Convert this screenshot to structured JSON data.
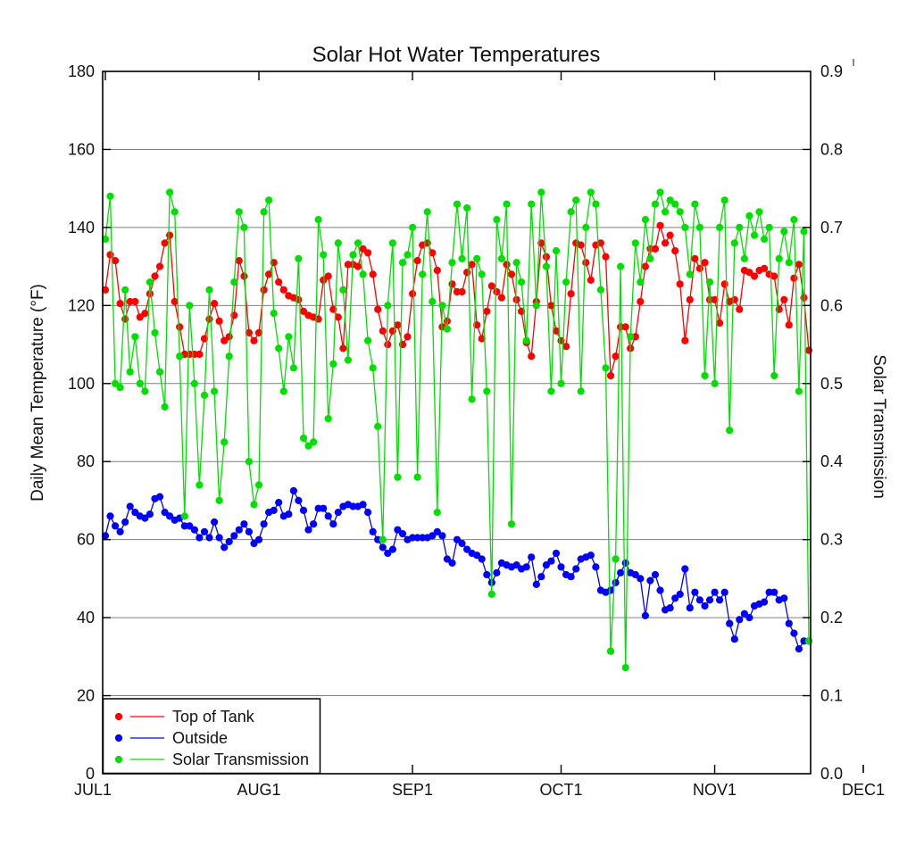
{
  "title": "Solar Hot Water Temperatures",
  "chart_data": {
    "type": "line",
    "title": "Solar Hot Water Temperatures",
    "x_axis": {
      "tick_labels": [
        "JUL1",
        "AUG1",
        "SEP1",
        "OCT1",
        "NOV1",
        "DEC1"
      ],
      "tick_days": [
        0,
        31,
        62,
        92,
        123,
        153
      ],
      "start_day": 0,
      "end_day": 153,
      "data_days": 143
    },
    "left_axis": {
      "label": "Daily Mean Temperature (°F)",
      "min": 0,
      "max": 180,
      "tick_step": 20
    },
    "right_axis": {
      "label": "Solar Transmission",
      "min": 0.0,
      "max": 0.9,
      "tick_step": 0.1
    },
    "grid": true,
    "legend_position": "bottom-left",
    "colors": {
      "top_of_tank": "#ff0000",
      "outside": "#0000ff",
      "solar_transmission": "#00e000",
      "gridline": "#808080",
      "axis": "#000000"
    },
    "series": [
      {
        "name": "Top of Tank",
        "axis": "left",
        "color": "#ff0000",
        "marker": "circle",
        "values": [
          124,
          133,
          131.5,
          120.5,
          116.5,
          121,
          121,
          117,
          118,
          123,
          127.5,
          130,
          136,
          138,
          121,
          114.5,
          107.5,
          107.5,
          107.5,
          107.5,
          111.5,
          116.5,
          120.5,
          116,
          111,
          112,
          117.5,
          131.5,
          127.5,
          113,
          111,
          113,
          124,
          128,
          131,
          126,
          124,
          122.5,
          122,
          121.5,
          118.5,
          117.5,
          117,
          116.5,
          126.5,
          127.5,
          119,
          117,
          109,
          130.5,
          130.5,
          130,
          134.5,
          133.5,
          128,
          119,
          113.5,
          110,
          113.5,
          115,
          110,
          112,
          123,
          131.5,
          135.5,
          136,
          133.5,
          129,
          114.5,
          116,
          125.5,
          123.5,
          123.5,
          128.5,
          130.5,
          115,
          111.5,
          118.5,
          125,
          123.5,
          122,
          130.5,
          128,
          121.5,
          118.5,
          110.5,
          107,
          121,
          136,
          132.5,
          120,
          113.5,
          111,
          109.5,
          123,
          136,
          135.5,
          131,
          126.5,
          135.5,
          136,
          132.5,
          102,
          107,
          114.5,
          114.5,
          109,
          112,
          121,
          130,
          134.5,
          134.5,
          140.5,
          136,
          138,
          134,
          125.5,
          111,
          121.5,
          132,
          129.5,
          131,
          121.5,
          121.5,
          115.5,
          125.5,
          121,
          121.5,
          119,
          129,
          128.5,
          127.5,
          129,
          129.5,
          128,
          127.5,
          119,
          121.5,
          115,
          127,
          130.5,
          122,
          108.5
        ]
      },
      {
        "name": "Outside",
        "axis": "left",
        "color": "#0000ff",
        "marker": "circle",
        "values": [
          61,
          66,
          63.5,
          62,
          64.5,
          68.5,
          67,
          66,
          65.5,
          66.5,
          70.5,
          71,
          67,
          66,
          65,
          65.5,
          63.5,
          63.5,
          62.5,
          60.5,
          62,
          60.5,
          64.5,
          60.5,
          58,
          59.5,
          61,
          62.5,
          64,
          62,
          59,
          60,
          64,
          67,
          67.5,
          69.5,
          66,
          66.5,
          72.5,
          70,
          67.5,
          62.5,
          64,
          68,
          68,
          66,
          64,
          67,
          68.5,
          69,
          68.5,
          68.5,
          69,
          67,
          62,
          60,
          58,
          56.5,
          57.5,
          62.5,
          61.5,
          60,
          60.5,
          60.5,
          60.5,
          60.5,
          61,
          62,
          61,
          55,
          54,
          60,
          59,
          57.5,
          56.5,
          56,
          55,
          51,
          49,
          51.5,
          54,
          53.5,
          53,
          53.5,
          52.5,
          53,
          55.5,
          48.5,
          50.5,
          53.5,
          54.5,
          56.5,
          53,
          51,
          50.5,
          52.5,
          55,
          55.5,
          56,
          53,
          47,
          46.5,
          47,
          49,
          51.5,
          54,
          51.5,
          51,
          50,
          40.5,
          49.5,
          51,
          47,
          42,
          42.5,
          45,
          46,
          52.5,
          42.5,
          46.5,
          44.5,
          43,
          44.5,
          46.5,
          44.5,
          46.5,
          38.5,
          34.5,
          39.5,
          41,
          40,
          43,
          43.5,
          44,
          46.5,
          46.5,
          44.5,
          45,
          38.5,
          36,
          32,
          34,
          34
        ]
      },
      {
        "name": "Solar Transmission",
        "axis": "right",
        "color": "#00e000",
        "marker": "circle",
        "values": [
          0.685,
          0.74,
          0.5,
          0.495,
          0.62,
          0.515,
          0.56,
          0.5,
          0.49,
          0.63,
          0.565,
          0.515,
          0.47,
          0.745,
          0.72,
          0.535,
          0.33,
          0.6,
          0.5,
          0.37,
          0.485,
          0.62,
          0.49,
          0.35,
          0.425,
          0.535,
          0.63,
          0.72,
          0.7,
          0.4,
          0.345,
          0.37,
          0.72,
          0.735,
          0.59,
          0.545,
          0.49,
          0.56,
          0.52,
          0.66,
          0.43,
          0.42,
          0.425,
          0.71,
          0.665,
          0.455,
          0.525,
          0.68,
          0.62,
          0.53,
          0.665,
          0.68,
          0.64,
          0.555,
          0.52,
          0.445,
          0.3,
          0.6,
          0.68,
          0.38,
          0.655,
          0.665,
          0.7,
          0.38,
          0.64,
          0.72,
          0.605,
          0.335,
          0.6,
          0.57,
          0.655,
          0.73,
          0.66,
          0.725,
          0.48,
          0.66,
          0.64,
          0.49,
          0.23,
          0.71,
          0.66,
          0.73,
          0.32,
          0.655,
          0.63,
          0.555,
          0.73,
          0.6,
          0.745,
          0.65,
          0.49,
          0.67,
          0.5,
          0.63,
          0.72,
          0.735,
          0.49,
          0.7,
          0.745,
          0.73,
          0.62,
          0.52,
          0.157,
          0.275,
          0.65,
          0.136,
          0.56,
          0.68,
          0.63,
          0.71,
          0.66,
          0.73,
          0.745,
          0.72,
          0.735,
          0.73,
          0.72,
          0.7,
          0.64,
          0.73,
          0.7,
          0.51,
          0.63,
          0.5,
          0.7,
          0.735,
          0.44,
          0.68,
          0.7,
          0.66,
          0.715,
          0.69,
          0.72,
          0.685,
          0.7,
          0.51,
          0.66,
          0.695,
          0.655,
          0.71,
          0.49,
          0.695,
          0.17
        ]
      }
    ],
    "legend": [
      {
        "label": "Top of Tank",
        "color": "#ff0000"
      },
      {
        "label": "Outside",
        "color": "#0000ff"
      },
      {
        "label": "Solar Transmission",
        "color": "#00e000"
      }
    ]
  }
}
